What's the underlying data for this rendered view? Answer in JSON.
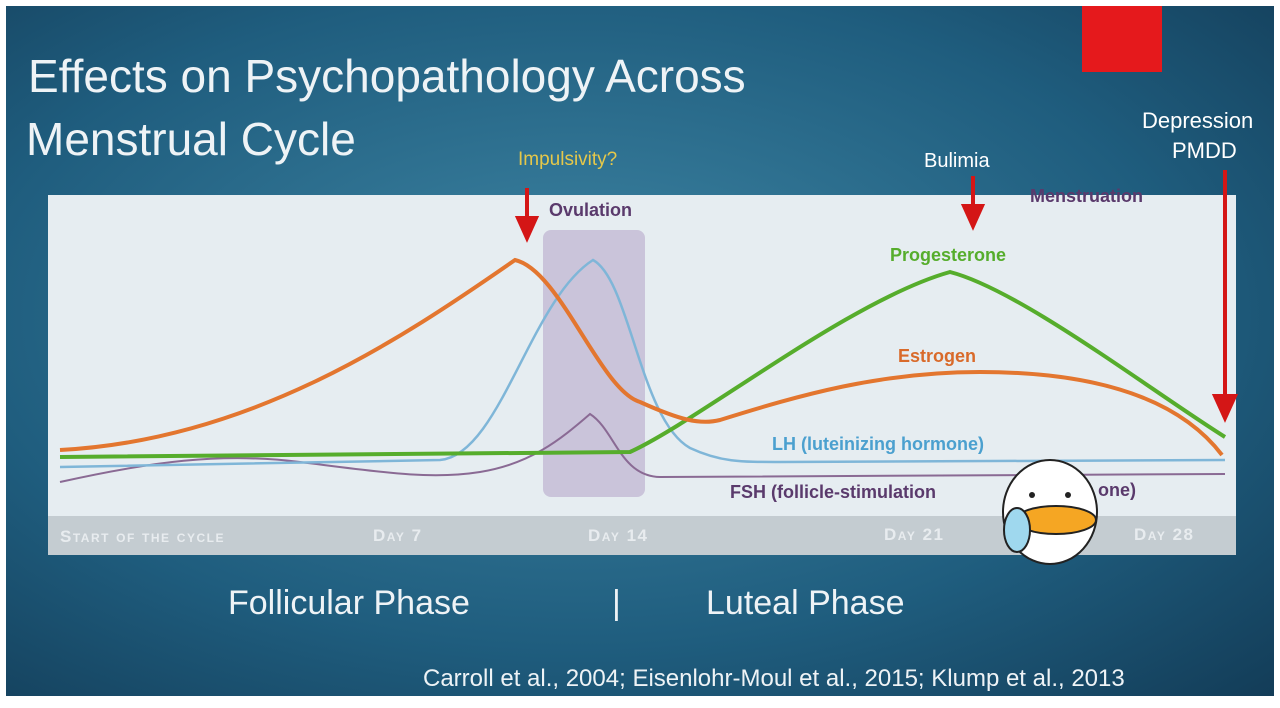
{
  "title": {
    "line1": "Effects on Psychopathology Across",
    "line2": "Menstrual Cycle"
  },
  "annotations": {
    "impulsivity": "Impulsivity?",
    "bulimia": "Bulimia",
    "depression": [
      "Depression",
      "PMDD"
    ]
  },
  "diagram": {
    "ovulation": "Ovulation",
    "menstruation": "Menstruation",
    "curves": {
      "progesterone": "Progesterone",
      "estrogen": "Estrogen",
      "lh": "LH (luteinizing hormone)",
      "fsh_start": "FSH (follicle-stimulation",
      "fsh_end": "one)"
    },
    "timeline": [
      "Start of the cycle",
      "Day 7",
      "Day 14",
      "Day 21",
      "Day 28"
    ]
  },
  "phases": {
    "follicular": "Follicular Phase",
    "divider": "|",
    "luteal": "Luteal Phase"
  },
  "citation": "Carroll et al., 2004; Eisenlohr-Moul et al., 2015; Klump et al., 2013"
}
